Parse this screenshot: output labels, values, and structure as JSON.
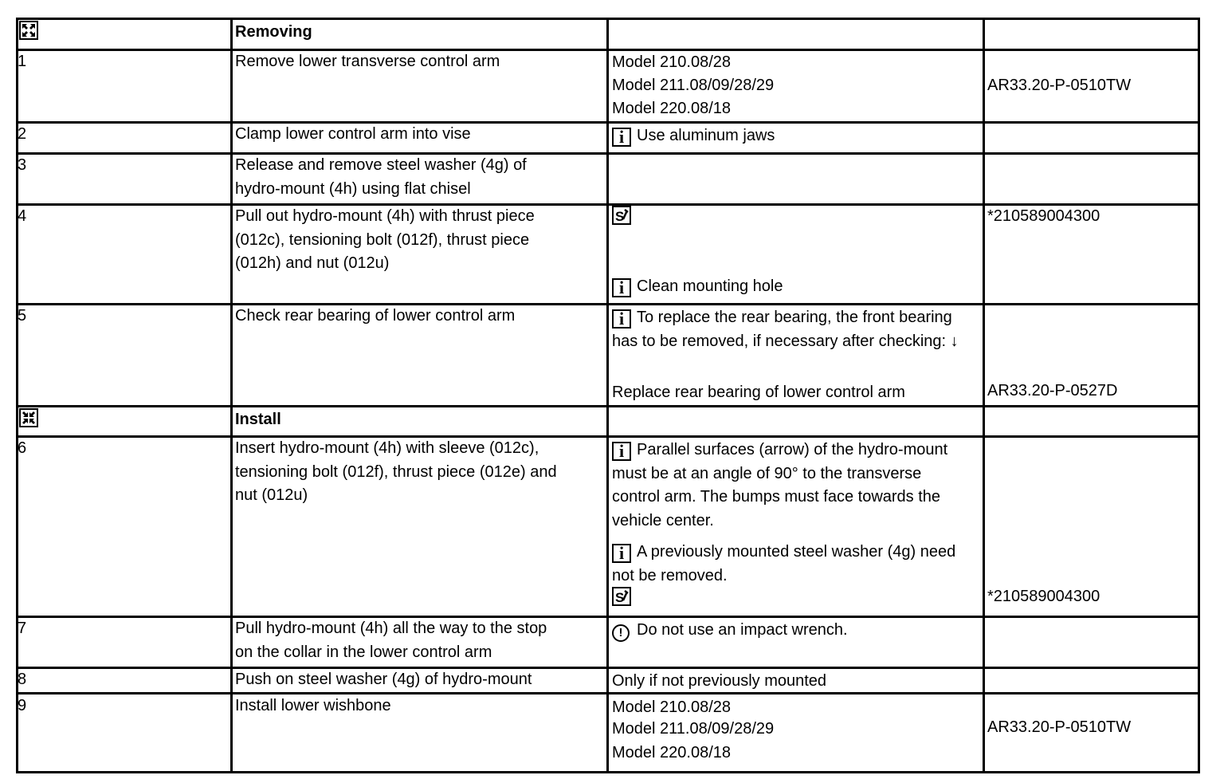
{
  "rows": [
    {
      "num_icon": "expand-arrows-icon",
      "action": "Removing",
      "bold": true,
      "notes": [],
      "ref": ""
    },
    {
      "num": "1",
      "action": [
        "Remove lower transverse control arm"
      ],
      "notes": [
        {
          "text": "Model 210.08/28"
        },
        {
          "text": "Model 211.08/09/28/29"
        },
        {
          "text": "Model 220.08/18"
        }
      ],
      "ref": "AR33.20-P-0510TW"
    },
    {
      "num": "2",
      "action": [
        "Clamp lower control arm into vise"
      ],
      "notes": [
        {
          "icon": "info-icon",
          "text": "Use aluminum jaws"
        }
      ],
      "ref": ""
    },
    {
      "num": "3",
      "action": [
        "Release and remove steel washer (4g) of",
        "hydro-mount (4h) using flat chisel"
      ],
      "notes": [],
      "ref": ""
    },
    {
      "num": "4",
      "action": [
        "Pull out hydro-mount (4h) with thrust piece",
        "(012c), tensioning bolt (012f), thrust piece",
        "(012h) and nut (012u)"
      ],
      "notes": [
        {
          "icon": "special-tool-icon",
          "text": ""
        },
        {
          "icon": "info-icon",
          "text": "Clean mounting hole"
        }
      ],
      "ref": "*210589004300"
    },
    {
      "num": "5",
      "action": [
        "Check rear bearing of lower control arm"
      ],
      "notes": [
        {
          "icon": "info-icon",
          "text": "To replace the rear bearing, the front bearing has to be removed, if necessary after checking: ↓"
        },
        {
          "text": "Replace rear bearing of lower control arm"
        }
      ],
      "ref": "AR33.20-P-0527D"
    },
    {
      "num_icon": "compress-arrows-icon",
      "action": "Install",
      "bold": true,
      "notes": [],
      "ref": ""
    },
    {
      "num": "6",
      "action": [
        "Insert hydro-mount (4h) with sleeve (012c),",
        "tensioning bolt (012f), thrust piece (012e) and",
        "nut (012u)"
      ],
      "notes": [
        {
          "icon": "info-icon",
          "text": "Parallel surfaces (arrow) of the hydro-mount must be at an angle of 90° to the transverse control arm. The bumps must face towards the vehicle center."
        },
        {
          "icon": "info-icon",
          "text": "A previously mounted steel washer (4g) need not be removed."
        },
        {
          "icon": "special-tool-icon",
          "text": ""
        }
      ],
      "ref": "*210589004300"
    },
    {
      "num": "7",
      "action": [
        "Pull hydro-mount (4h) all the way to the stop",
        "on the collar in the lower control arm"
      ],
      "notes": [
        {
          "icon": "warning-icon",
          "text": "Do not use an impact wrench."
        }
      ],
      "ref": ""
    },
    {
      "num": "8",
      "action": [
        "Push on steel washer (4g) of hydro-mount"
      ],
      "notes": [
        {
          "text": "Only if not previously mounted"
        }
      ],
      "ref": ""
    },
    {
      "num": "9",
      "action": [
        "Install lower wishbone"
      ],
      "notes": [
        {
          "text": "Model 210.08/28"
        },
        {
          "text": "Model 211.08/09/28/29"
        },
        {
          "text": "Model 220.08/18"
        }
      ],
      "ref": "AR33.20-P-0510TW"
    }
  ]
}
